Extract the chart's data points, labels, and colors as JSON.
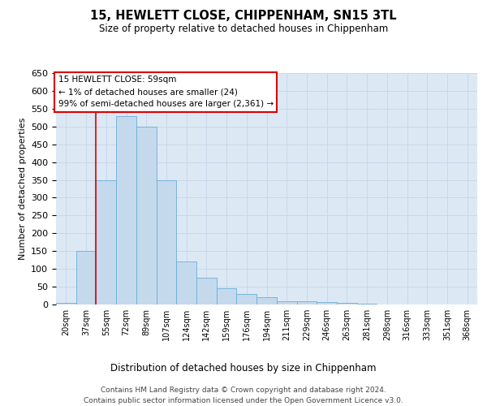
{
  "title": "15, HEWLETT CLOSE, CHIPPENHAM, SN15 3TL",
  "subtitle": "Size of property relative to detached houses in Chippenham",
  "xlabel": "Distribution of detached houses by size in Chippenham",
  "ylabel": "Number of detached properties",
  "bar_labels": [
    "20sqm",
    "37sqm",
    "55sqm",
    "72sqm",
    "89sqm",
    "107sqm",
    "124sqm",
    "142sqm",
    "159sqm",
    "176sqm",
    "194sqm",
    "211sqm",
    "229sqm",
    "246sqm",
    "263sqm",
    "281sqm",
    "298sqm",
    "316sqm",
    "333sqm",
    "351sqm",
    "368sqm"
  ],
  "bar_values": [
    5,
    150,
    350,
    530,
    500,
    350,
    120,
    75,
    45,
    30,
    20,
    10,
    8,
    6,
    5,
    3,
    0,
    0,
    0,
    0,
    0
  ],
  "bar_color": "#c5d9ed",
  "bar_edge_color": "#6aaed6",
  "vline_x": 1.5,
  "vline_color": "#dd0000",
  "ylim_max": 650,
  "ytick_step": 50,
  "annotation_line1": "15 HEWLETT CLOSE: 59sqm",
  "annotation_line2": "← 1% of detached houses are smaller (24)",
  "annotation_line3": "99% of semi-detached houses are larger (2,361) →",
  "annotation_box_facecolor": "#ffffff",
  "annotation_box_edgecolor": "#dd0000",
  "grid_color": "#c8d8ea",
  "plot_bg_color": "#dce9f5",
  "footer_line1": "Contains HM Land Registry data © Crown copyright and database right 2024.",
  "footer_line2": "Contains public sector information licensed under the Open Government Licence v3.0."
}
